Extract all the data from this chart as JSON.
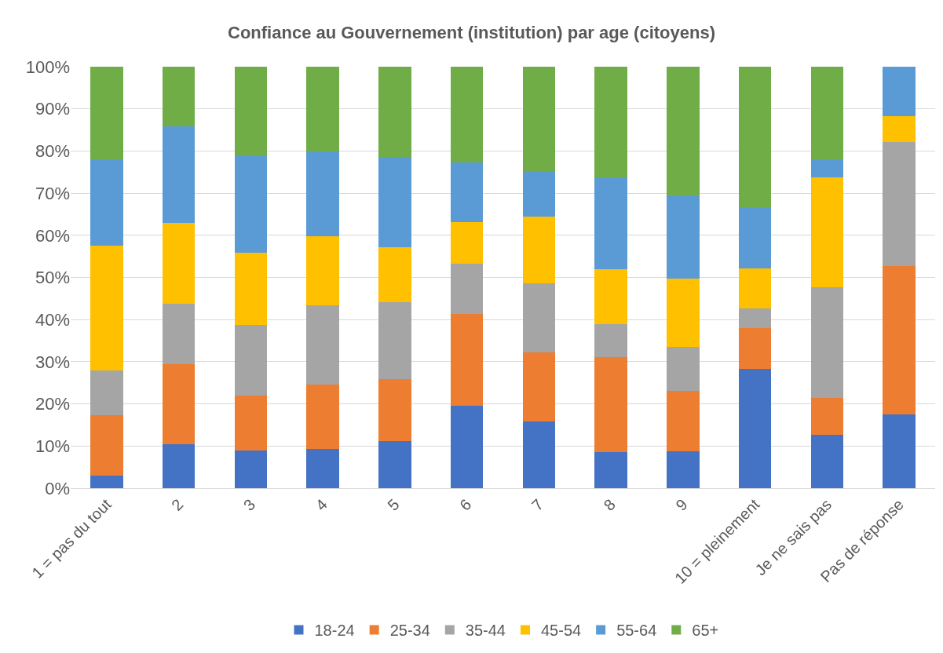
{
  "chart_data": {
    "type": "bar",
    "title": "Confiance au Gouvernement (institution) par age (citoyens)",
    "stacked": true,
    "categories": [
      "1 = pas du tout",
      "2",
      "3",
      "4",
      "5",
      "6",
      "7",
      "8",
      "9",
      "10 = pleinement",
      "Je ne sais pas",
      "Pas de réponse"
    ],
    "series": [
      {
        "name": "18-24",
        "color": "#4472c4",
        "values": [
          3,
          10.5,
          9,
          9.3,
          11.2,
          19.5,
          15.8,
          8.5,
          8.7,
          28.3,
          12.7,
          17.5
        ]
      },
      {
        "name": "25-34",
        "color": "#ed7d31",
        "values": [
          14.3,
          19,
          13,
          15.3,
          14.6,
          21.8,
          16.4,
          22.6,
          14.4,
          9.7,
          8.8,
          35.2
        ]
      },
      {
        "name": "35-44",
        "color": "#a5a5a5",
        "values": [
          10.7,
          14.2,
          16.8,
          18.8,
          18.4,
          12,
          16.4,
          7.8,
          10.5,
          4.6,
          26.2,
          29.5
        ]
      },
      {
        "name": "45-54",
        "color": "#ffc000",
        "values": [
          29.5,
          19.3,
          17,
          16.4,
          13,
          9.9,
          15.8,
          13.1,
          16.1,
          9.5,
          26.1,
          6
        ]
      },
      {
        "name": "55-64",
        "color": "#5b9bd5",
        "values": [
          20.5,
          22.8,
          23.2,
          20,
          21.2,
          14.1,
          10.8,
          21.8,
          19.8,
          14.4,
          4.2,
          11.8
        ]
      },
      {
        "name": "65+",
        "color": "#70ad47",
        "values": [
          22,
          14.2,
          21,
          20.2,
          21.6,
          22.7,
          24.8,
          26.2,
          30.5,
          33.5,
          22,
          0
        ]
      }
    ],
    "ylim": [
      0,
      100
    ],
    "yticks": [
      {
        "value": 0,
        "label": "0%"
      },
      {
        "value": 10,
        "label": "10%"
      },
      {
        "value": 20,
        "label": "20%"
      },
      {
        "value": 30,
        "label": "30%"
      },
      {
        "value": 40,
        "label": "40%"
      },
      {
        "value": 50,
        "label": "50%"
      },
      {
        "value": 60,
        "label": "60%"
      },
      {
        "value": 70,
        "label": "70%"
      },
      {
        "value": 80,
        "label": "80%"
      },
      {
        "value": 90,
        "label": "90%"
      },
      {
        "value": 100,
        "label": "100%"
      }
    ],
    "grid": "y",
    "legend": "bottom"
  }
}
